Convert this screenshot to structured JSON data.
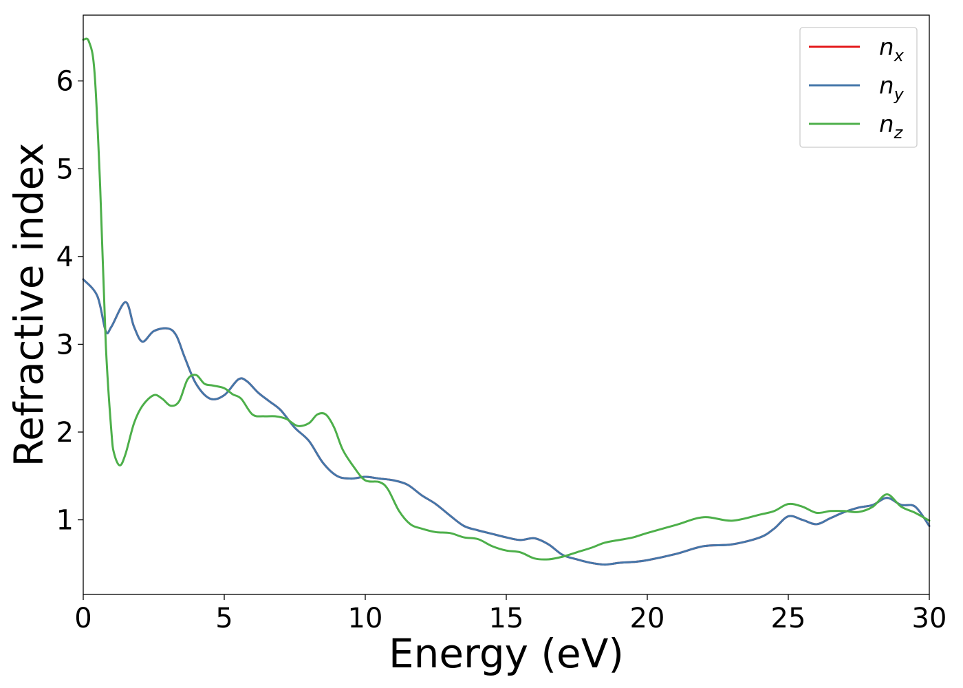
{
  "chart_data": {
    "type": "line",
    "xlabel": "Energy (eV)",
    "ylabel": "Refractive index",
    "xlim": [
      0,
      30
    ],
    "ylim": [
      0.15,
      6.75
    ],
    "xticks": [
      0,
      5,
      10,
      15,
      20,
      25,
      30
    ],
    "yticks": [
      1,
      2,
      3,
      4,
      5,
      6
    ],
    "grid": false,
    "legend_position": "top-right",
    "series": [
      {
        "name": "n",
        "subscript": "x",
        "color": "#e41a1c",
        "x": [
          0,
          0.5,
          0.8,
          1.0,
          1.5,
          1.8,
          2.1,
          2.5,
          3.0,
          3.3,
          3.6,
          4.0,
          4.5,
          5.0,
          5.5,
          5.8,
          6.2,
          6.6,
          7.0,
          7.5,
          8.0,
          8.5,
          9.0,
          9.5,
          10.0,
          10.5,
          11.0,
          11.5,
          12.0,
          12.5,
          13.0,
          13.5,
          14.0,
          14.5,
          15.0,
          15.5,
          16.0,
          16.5,
          17.0,
          17.5,
          18.0,
          18.5,
          19.0,
          19.5,
          20.0,
          21.0,
          22.0,
          23.0,
          24.0,
          24.5,
          25.0,
          25.5,
          26.0,
          26.5,
          27.0,
          27.5,
          28.0,
          28.5,
          29.0,
          29.5,
          30.0
        ],
        "y": [
          3.74,
          3.55,
          3.15,
          3.2,
          3.48,
          3.2,
          3.03,
          3.15,
          3.18,
          3.1,
          2.85,
          2.55,
          2.38,
          2.42,
          2.6,
          2.58,
          2.45,
          2.35,
          2.25,
          2.05,
          1.9,
          1.65,
          1.5,
          1.47,
          1.49,
          1.47,
          1.45,
          1.4,
          1.28,
          1.18,
          1.05,
          0.93,
          0.88,
          0.84,
          0.8,
          0.77,
          0.79,
          0.72,
          0.6,
          0.55,
          0.51,
          0.49,
          0.51,
          0.52,
          0.54,
          0.61,
          0.7,
          0.72,
          0.8,
          0.9,
          1.04,
          1.0,
          0.95,
          1.02,
          1.09,
          1.14,
          1.17,
          1.25,
          1.17,
          1.15,
          0.93
        ]
      },
      {
        "name": "n",
        "subscript": "y",
        "color": "#4477aa",
        "x": [
          0,
          0.5,
          0.8,
          1.0,
          1.5,
          1.8,
          2.1,
          2.5,
          3.0,
          3.3,
          3.6,
          4.0,
          4.5,
          5.0,
          5.5,
          5.8,
          6.2,
          6.6,
          7.0,
          7.5,
          8.0,
          8.5,
          9.0,
          9.5,
          10.0,
          10.5,
          11.0,
          11.5,
          12.0,
          12.5,
          13.0,
          13.5,
          14.0,
          14.5,
          15.0,
          15.5,
          16.0,
          16.5,
          17.0,
          17.5,
          18.0,
          18.5,
          19.0,
          19.5,
          20.0,
          21.0,
          22.0,
          23.0,
          24.0,
          24.5,
          25.0,
          25.5,
          26.0,
          26.5,
          27.0,
          27.5,
          28.0,
          28.5,
          29.0,
          29.5,
          30.0
        ],
        "y": [
          3.74,
          3.55,
          3.15,
          3.2,
          3.48,
          3.2,
          3.03,
          3.15,
          3.18,
          3.1,
          2.85,
          2.55,
          2.38,
          2.42,
          2.6,
          2.58,
          2.45,
          2.35,
          2.25,
          2.05,
          1.9,
          1.65,
          1.5,
          1.47,
          1.49,
          1.47,
          1.45,
          1.4,
          1.28,
          1.18,
          1.05,
          0.93,
          0.88,
          0.84,
          0.8,
          0.77,
          0.79,
          0.72,
          0.6,
          0.55,
          0.51,
          0.49,
          0.51,
          0.52,
          0.54,
          0.61,
          0.7,
          0.72,
          0.8,
          0.9,
          1.04,
          1.0,
          0.95,
          1.02,
          1.09,
          1.14,
          1.17,
          1.25,
          1.17,
          1.15,
          0.93
        ]
      },
      {
        "name": "n",
        "subscript": "z",
        "color": "#4daf4a",
        "x": [
          0,
          0.2,
          0.4,
          0.6,
          0.8,
          1.0,
          1.1,
          1.3,
          1.5,
          1.8,
          2.1,
          2.5,
          2.8,
          3.1,
          3.4,
          3.7,
          4.0,
          4.3,
          4.6,
          5.0,
          5.3,
          5.6,
          6.0,
          6.4,
          6.8,
          7.2,
          7.6,
          8.0,
          8.3,
          8.6,
          8.9,
          9.2,
          9.6,
          10.0,
          10.5,
          10.8,
          11.2,
          11.6,
          12.0,
          12.5,
          13.0,
          13.5,
          14.0,
          14.5,
          15.0,
          15.5,
          16.0,
          16.5,
          17.0,
          17.5,
          18.0,
          18.5,
          19.0,
          19.5,
          20.0,
          21.0,
          22.0,
          23.0,
          24.0,
          24.5,
          25.0,
          25.5,
          26.0,
          26.5,
          27.0,
          27.5,
          28.0,
          28.5,
          29.0,
          29.5,
          30.0
        ],
        "y": [
          6.47,
          6.45,
          6.1,
          4.8,
          3.0,
          2.0,
          1.75,
          1.62,
          1.75,
          2.1,
          2.3,
          2.42,
          2.38,
          2.3,
          2.35,
          2.6,
          2.65,
          2.55,
          2.53,
          2.5,
          2.43,
          2.38,
          2.2,
          2.18,
          2.18,
          2.15,
          2.07,
          2.1,
          2.2,
          2.2,
          2.05,
          1.8,
          1.6,
          1.45,
          1.43,
          1.35,
          1.1,
          0.95,
          0.9,
          0.86,
          0.85,
          0.8,
          0.78,
          0.7,
          0.65,
          0.63,
          0.56,
          0.55,
          0.58,
          0.63,
          0.68,
          0.74,
          0.77,
          0.8,
          0.85,
          0.94,
          1.03,
          0.99,
          1.06,
          1.1,
          1.18,
          1.15,
          1.08,
          1.1,
          1.1,
          1.09,
          1.15,
          1.29,
          1.15,
          1.08,
          0.99
        ]
      }
    ]
  }
}
